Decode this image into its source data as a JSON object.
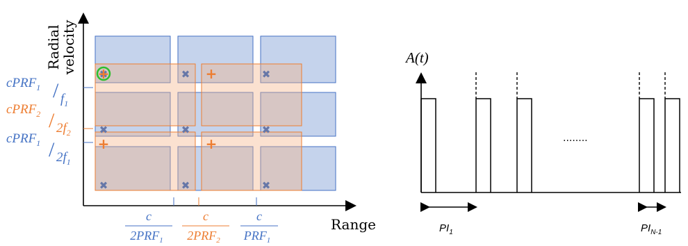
{
  "left_diagram": {
    "y_axis_label_line1": "Radial",
    "y_axis_label_line2": "velocity",
    "x_axis_label": "Range",
    "colors": {
      "blue": "#4472c4",
      "blue_fill": "#c5d3ec",
      "orange": "#ed7d31",
      "orange_fill": "#fbe3d3",
      "overlap_fill": "#d4c2c3",
      "green": "#2dbf2d",
      "blue_marker": "#6677a8"
    },
    "y_labels": [
      {
        "num": "cPRF",
        "sub": "1",
        "den": "f",
        "den_sub": "1",
        "color": "blue"
      },
      {
        "num": "cPRF",
        "sub": "2",
        "den": "2f",
        "den_sub": "2",
        "color": "orange"
      },
      {
        "num": "cPRF",
        "sub": "1",
        "den": "2f",
        "den_sub": "1",
        "color": "blue"
      }
    ],
    "x_labels": [
      {
        "num": "c",
        "den": "2PRF",
        "den_sub": "1",
        "color": "blue"
      },
      {
        "num": "c",
        "den": "2PRF",
        "den_sub": "2",
        "color": "orange"
      },
      {
        "num": "c",
        "den": "PRF",
        "den_sub": "1",
        "color": "blue"
      }
    ],
    "markers": {
      "blue": "✖",
      "orange": "+"
    }
  },
  "right_diagram": {
    "y_axis_label": "A(t)",
    "ellipsis": "........",
    "interval_labels": [
      {
        "base": "PI",
        "sub": "1"
      },
      {
        "base": "PI",
        "sub": "N-1"
      }
    ]
  }
}
